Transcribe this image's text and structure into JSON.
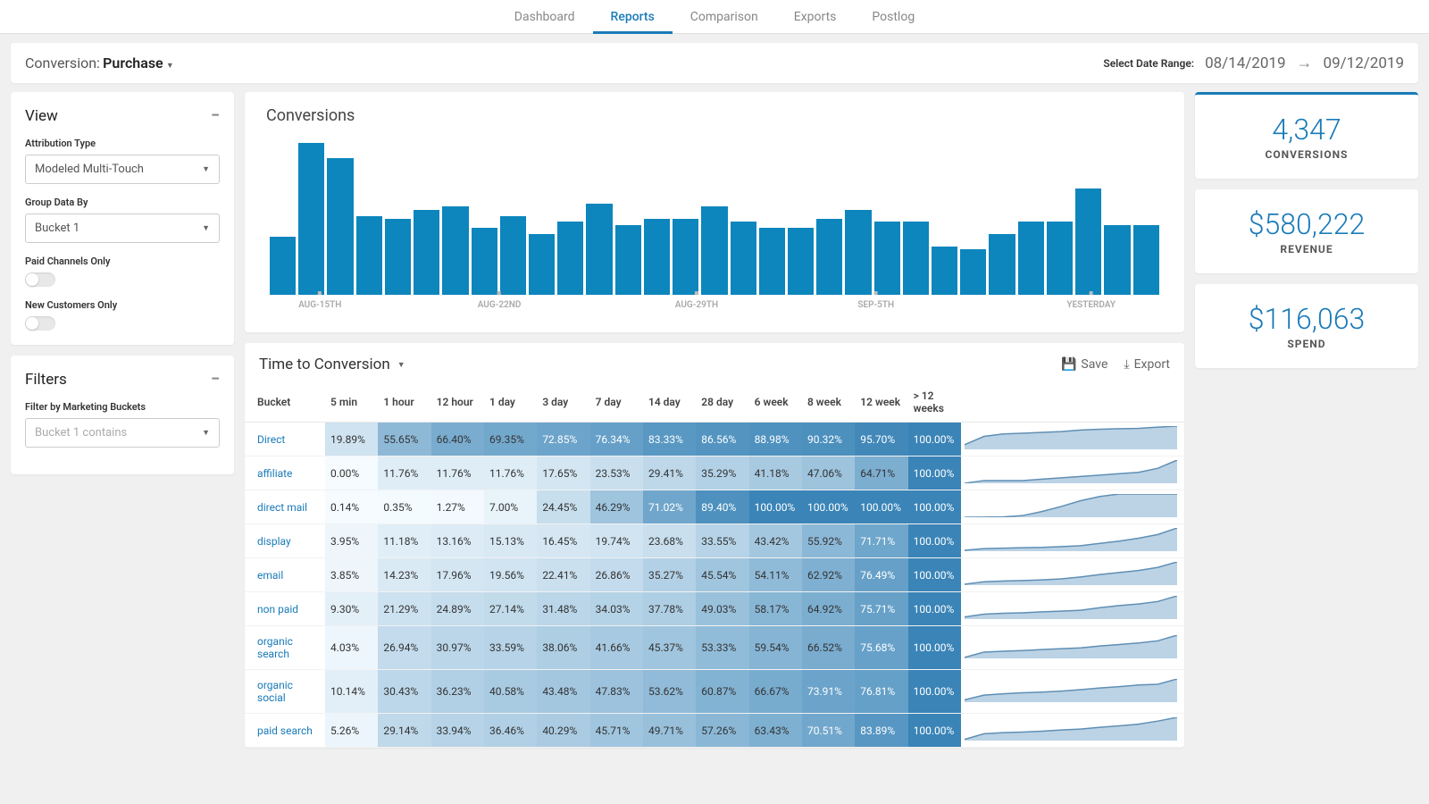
{
  "nav": {
    "items": [
      "Dashboard",
      "Reports",
      "Comparison",
      "Exports",
      "Postlog"
    ],
    "active": 1
  },
  "sub": {
    "conversion_label": "Conversion:",
    "conversion_value": "Purchase",
    "date_label": "Select Date Range:",
    "date_start": "08/14/2019",
    "date_end": "09/12/2019"
  },
  "view_panel": {
    "title": "View",
    "attr_label": "Attribution Type",
    "attr_value": "Modeled Multi-Touch",
    "group_label": "Group Data By",
    "group_value": "Bucket 1",
    "toggle1": "Paid Channels Only",
    "toggle2": "New Customers Only"
  },
  "filters_panel": {
    "title": "Filters",
    "filter_label": "Filter by Marketing Buckets",
    "filter_placeholder": "Bucket 1 contains"
  },
  "chart": {
    "title": "Conversions",
    "bar_color": "#0c86bd",
    "values": [
      38,
      100,
      90,
      52,
      50,
      56,
      58,
      44,
      52,
      40,
      48,
      60,
      46,
      50,
      50,
      58,
      48,
      44,
      44,
      50,
      56,
      48,
      48,
      32,
      30,
      40,
      48,
      48,
      70,
      46,
      46
    ],
    "ticks": [
      {
        "pos": 6,
        "label": "AUG-15TH"
      },
      {
        "pos": 26,
        "label": "AUG-22ND"
      },
      {
        "pos": 48,
        "label": "AUG-29TH"
      },
      {
        "pos": 68,
        "label": "SEP-5TH"
      },
      {
        "pos": 92,
        "label": "YESTERDAY"
      }
    ]
  },
  "metrics": [
    {
      "value": "4,347",
      "label": "CONVERSIONS",
      "bordered": true
    },
    {
      "value": "$580,222",
      "label": "REVENUE",
      "bordered": false
    },
    {
      "value": "$116,063",
      "label": "SPEND",
      "bordered": false
    }
  ],
  "table": {
    "title": "Time to Conversion",
    "save": "Save",
    "export": "Export",
    "columns": [
      "Bucket",
      "5 min",
      "1 hour",
      "12 hour",
      "1 day",
      "3 day",
      "7 day",
      "14 day",
      "28 day",
      "6 week",
      "8 week",
      "12 week",
      "> 12 weeks",
      ""
    ],
    "rows": [
      {
        "bucket": "Direct",
        "cells": [
          19.89,
          55.65,
          66.4,
          69.35,
          72.85,
          76.34,
          83.33,
          86.56,
          88.98,
          90.32,
          95.7,
          100.0
        ]
      },
      {
        "bucket": "affiliate",
        "cells": [
          0.0,
          11.76,
          11.76,
          11.76,
          17.65,
          23.53,
          29.41,
          35.29,
          41.18,
          47.06,
          64.71,
          100.0
        ]
      },
      {
        "bucket": "direct mail",
        "cells": [
          0.14,
          0.35,
          1.27,
          7.0,
          24.45,
          46.29,
          71.02,
          89.4,
          100.0,
          100.0,
          100.0,
          100.0
        ]
      },
      {
        "bucket": "display",
        "cells": [
          3.95,
          11.18,
          13.16,
          15.13,
          16.45,
          19.74,
          23.68,
          33.55,
          43.42,
          55.92,
          71.71,
          100.0
        ]
      },
      {
        "bucket": "email",
        "cells": [
          3.85,
          14.23,
          17.96,
          19.56,
          22.41,
          26.86,
          35.27,
          45.54,
          54.11,
          62.92,
          76.49,
          100.0
        ]
      },
      {
        "bucket": "non paid",
        "cells": [
          9.3,
          21.29,
          24.89,
          27.14,
          31.48,
          34.03,
          37.78,
          49.03,
          58.17,
          64.92,
          75.71,
          100.0
        ]
      },
      {
        "bucket": "organic search",
        "cells": [
          4.03,
          26.94,
          30.97,
          33.59,
          38.06,
          41.66,
          45.37,
          53.33,
          59.54,
          66.52,
          75.68,
          100.0
        ]
      },
      {
        "bucket": "organic social",
        "cells": [
          10.14,
          30.43,
          36.23,
          40.58,
          43.48,
          47.83,
          53.62,
          60.87,
          66.67,
          73.91,
          76.81,
          100.0
        ]
      },
      {
        "bucket": "paid search",
        "cells": [
          5.26,
          29.14,
          33.94,
          36.46,
          40.29,
          45.71,
          49.71,
          57.26,
          63.43,
          70.51,
          83.89,
          100.0
        ]
      }
    ],
    "heat_low": "#f5fbff",
    "heat_high": "#3a84b7",
    "spark_fill": "#8fb6d3",
    "spark_stroke": "#5f8fb5"
  }
}
